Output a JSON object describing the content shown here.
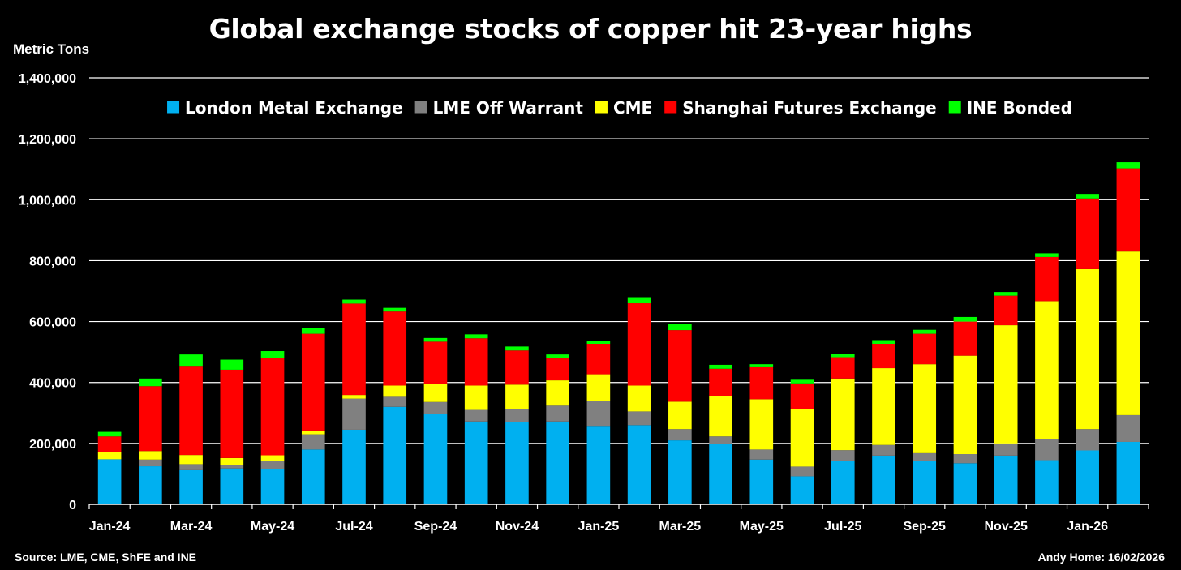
{
  "title": "Global exchange stocks of copper hit 23-year highs",
  "footer": {
    "source": "Source: LME, CME, ShFE and INE",
    "credit": "Andy Home: 16/02/2026"
  },
  "chart_data": {
    "type": "bar",
    "stacked": true,
    "ylabel": "Metric Tons",
    "ylim": [
      0,
      1400000
    ],
    "y_ticks": [
      "0",
      "200,000",
      "400,000",
      "600,000",
      "800,000",
      "1,000,000",
      "1,200,000",
      "1,400,000"
    ],
    "y_tick_values": [
      0,
      200000,
      400000,
      600000,
      800000,
      1000000,
      1200000,
      1400000
    ],
    "grid": true,
    "legend_position": "top",
    "categories": [
      "Jan-24",
      "Feb-24",
      "Mar-24",
      "Apr-24",
      "May-24",
      "Jun-24",
      "Jul-24",
      "Aug-24",
      "Sep-24",
      "Oct-24",
      "Nov-24",
      "Dec-24",
      "Jan-25",
      "Feb-25",
      "Mar-25",
      "Apr-25",
      "May-25",
      "Jun-25",
      "Jul-25",
      "Aug-25",
      "Sep-25",
      "Oct-25",
      "Nov-25",
      "Dec-25",
      "Jan-26",
      "Feb-26"
    ],
    "x_tick_labels": [
      "Jan-24",
      "",
      "Mar-24",
      "",
      "May-24",
      "",
      "Jul-24",
      "",
      "Sep-24",
      "",
      "Nov-24",
      "",
      "Jan-25",
      "",
      "Mar-25",
      "",
      "May-25",
      "",
      "Jul-25",
      "",
      "Sep-25",
      "",
      "Nov-25",
      "",
      "Jan-26",
      ""
    ],
    "series": [
      {
        "name": "London Metal Exchange",
        "color": "#00B0F0",
        "values": [
          148000,
          125000,
          112000,
          118000,
          115000,
          180000,
          245000,
          320000,
          298000,
          272000,
          270000,
          272000,
          255000,
          260000,
          210000,
          198000,
          147000,
          92000,
          143000,
          160000,
          143000,
          135000,
          160000,
          145000,
          177000,
          205000
        ]
      },
      {
        "name": "LME Off Warrant",
        "color": "#808080",
        "values": [
          0,
          22000,
          20000,
          12000,
          28000,
          50000,
          102000,
          33000,
          38000,
          38000,
          43000,
          52000,
          85000,
          45000,
          37000,
          25000,
          33000,
          32000,
          35000,
          35000,
          25000,
          30000,
          40000,
          70000,
          70000,
          88000
        ]
      },
      {
        "name": "CME",
        "color": "#FFFF00",
        "values": [
          25000,
          28000,
          30000,
          22000,
          18000,
          10000,
          12000,
          37000,
          58000,
          80000,
          80000,
          83000,
          87000,
          85000,
          90000,
          132000,
          165000,
          190000,
          235000,
          252000,
          292000,
          323000,
          388000,
          452000,
          525000,
          537000
        ]
      },
      {
        "name": "Shanghai Futures Exchange",
        "color": "#FF0000",
        "values": [
          50000,
          213000,
          290000,
          290000,
          320000,
          320000,
          300000,
          243000,
          140000,
          155000,
          112000,
          72000,
          100000,
          270000,
          235000,
          90000,
          105000,
          83000,
          70000,
          80000,
          100000,
          112000,
          97000,
          145000,
          232000,
          273000
        ]
      },
      {
        "name": "INE Bonded",
        "color": "#00FF00",
        "values": [
          15000,
          25000,
          40000,
          33000,
          22000,
          18000,
          13000,
          12000,
          12000,
          13000,
          13000,
          13000,
          10000,
          20000,
          20000,
          13000,
          10000,
          12000,
          12000,
          12000,
          13000,
          15000,
          12000,
          12000,
          15000,
          20000
        ]
      }
    ]
  }
}
